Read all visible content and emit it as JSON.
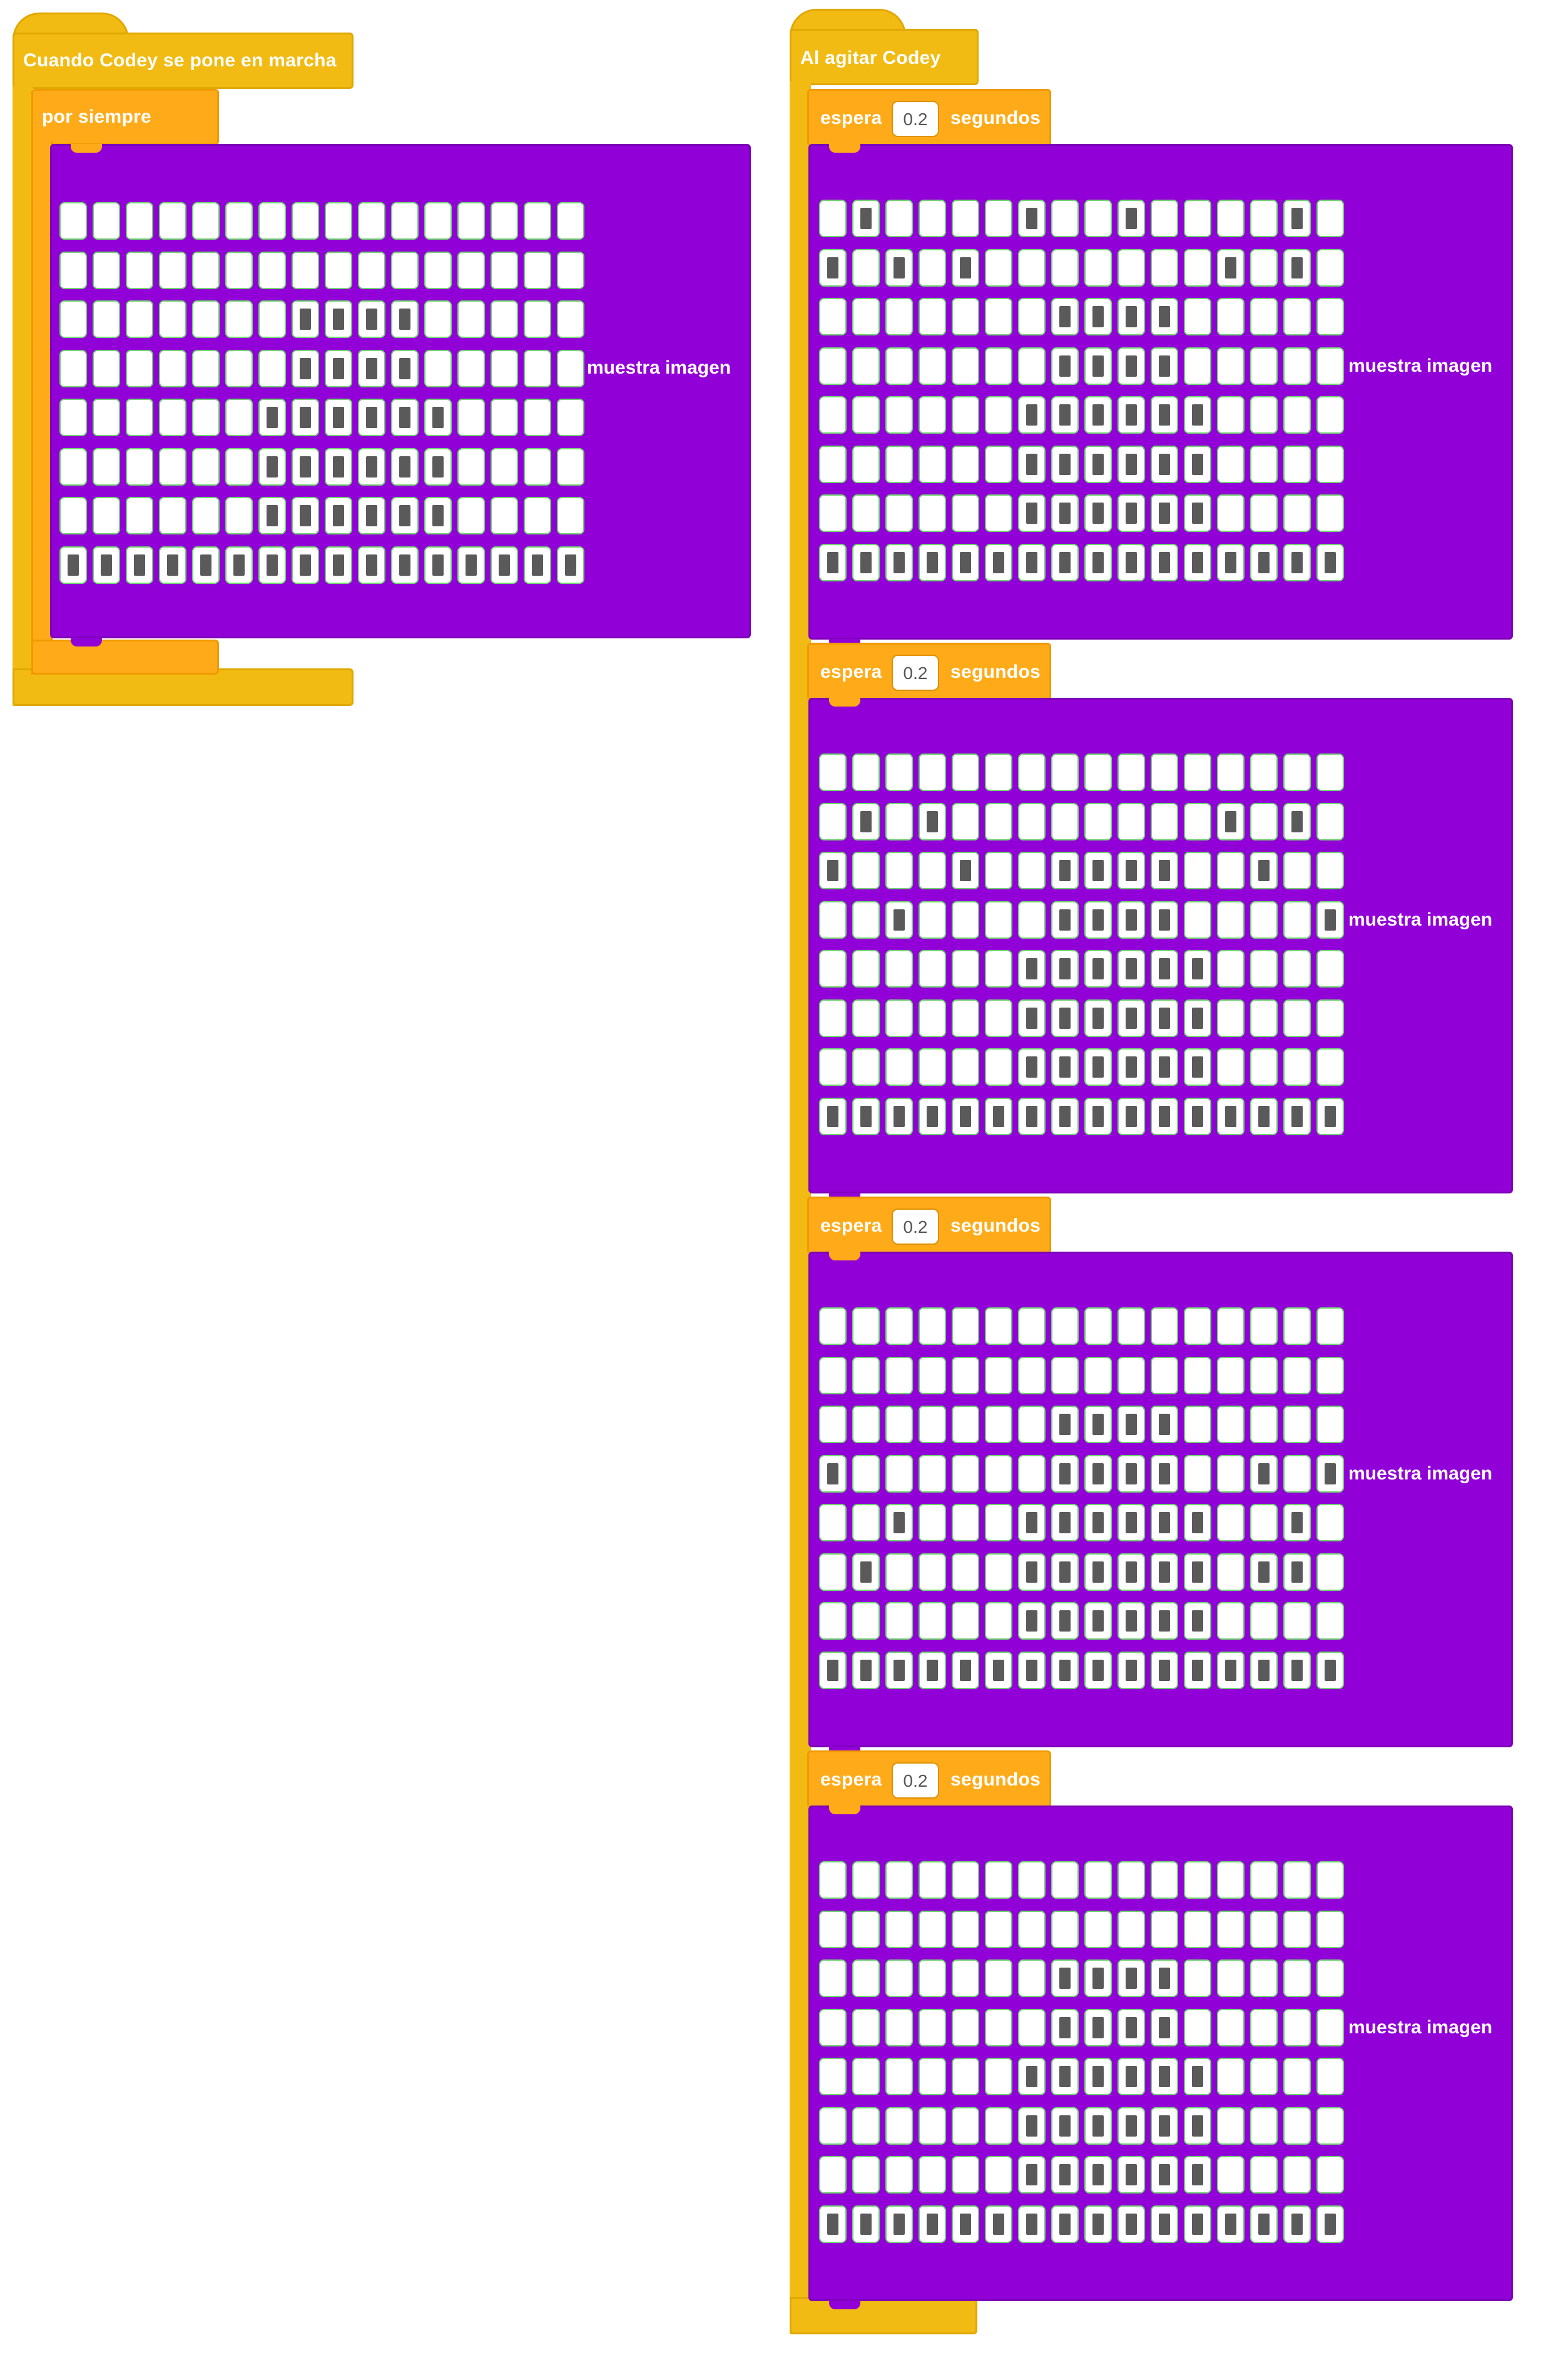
{
  "scripts": [
    {
      "hat_label": "Cuando Codey se pone en marcha",
      "loop_label": "por siempre",
      "show_blocks": [
        {
          "label": "muestra imagen",
          "grid": [
            "0000000000000000",
            "0000000000000000",
            "0000000111100000",
            "0000000111100000",
            "0000001111110000",
            "0000001111110000",
            "0000001111110000",
            "1111111111111111"
          ]
        }
      ]
    },
    {
      "hat_label": "Al agitar Codey",
      "wait_label": "espera",
      "wait_unit": "segundos",
      "frames": [
        {
          "wait_value": "0.2",
          "show_label": "muestra imagen",
          "grid": [
            "0100001001000010",
            "1010100000001010",
            "0000000111100000",
            "0000000111100000",
            "0000001111110000",
            "0000001111110000",
            "0000001111110000",
            "1111111111111111"
          ]
        },
        {
          "wait_value": "0.2",
          "show_label": "muestra imagen",
          "grid": [
            "0000000000000000",
            "0101000000001010",
            "1000100111100100",
            "0010000111100001",
            "0000001111110000",
            "0000001111110000",
            "0000001111110000",
            "1111111111111111"
          ]
        },
        {
          "wait_value": "0.2",
          "show_label": "muestra imagen",
          "grid": [
            "0000000000000000",
            "0000000000000000",
            "0000000111100000",
            "1000000111100101",
            "0010001111110010",
            "0100001111110110",
            "0000001111110000",
            "1111111111111111"
          ]
        },
        {
          "wait_value": "0.2",
          "show_label": "muestra imagen",
          "grid": [
            "0000000000000000",
            "0000000000000000",
            "0000000111100000",
            "0000000111100000",
            "0000001111110000",
            "0000001111110000",
            "0000001111110000",
            "1111111111111111"
          ]
        }
      ]
    }
  ],
  "colors": {
    "event": "#f2bb13",
    "control": "#ffab19",
    "looks": "#9200d8",
    "led_on": "#5a5a5a",
    "led_off": "#ffffff"
  }
}
